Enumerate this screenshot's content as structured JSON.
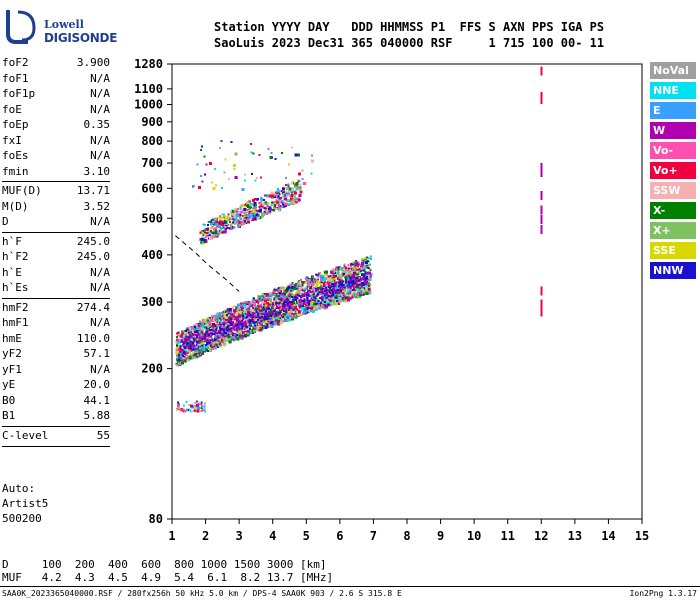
{
  "logo": {
    "line1": "Lowell",
    "line2": "DIGISONDE"
  },
  "header": {
    "line1": "Station YYYY DAY   DDD HHMMSS P1  FFS S AXN PPS IGA PS",
    "line2": "SaoLuis 2023 Dec31 365 040000 RSF     1 715 100 00- 11"
  },
  "params": [
    {
      "name": "foF2",
      "value": "3.900"
    },
    {
      "name": "foF1",
      "value": "N/A"
    },
    {
      "name": "foF1p",
      "value": "N/A"
    },
    {
      "name": "foE",
      "value": "N/A"
    },
    {
      "name": "foEp",
      "value": "0.35"
    },
    {
      "name": "fxI",
      "value": "N/A"
    },
    {
      "name": "foEs",
      "value": "N/A"
    },
    {
      "name": "fmin",
      "value": "3.10"
    },
    {
      "name": "MUF(D)",
      "value": "13.71"
    },
    {
      "name": "M(D)",
      "value": "3.52"
    },
    {
      "name": "D",
      "value": "N/A"
    },
    {
      "name": "h`F",
      "value": "245.0"
    },
    {
      "name": "h`F2",
      "value": "245.0"
    },
    {
      "name": "h`E",
      "value": "N/A"
    },
    {
      "name": "h`Es",
      "value": "N/A"
    },
    {
      "name": "hmF2",
      "value": "274.4"
    },
    {
      "name": "hmF1",
      "value": "N/A"
    },
    {
      "name": "hmE",
      "value": "110.0"
    },
    {
      "name": "yF2",
      "value": "57.1"
    },
    {
      "name": "yF1",
      "value": "N/A"
    },
    {
      "name": "yE",
      "value": "20.0"
    },
    {
      "name": "B0",
      "value": "44.1"
    },
    {
      "name": "B1",
      "value": "5.88"
    },
    {
      "name": "C-level",
      "value": "55"
    }
  ],
  "auto": {
    "line1": "Auto:",
    "line2": "Artist5",
    "line3": "500200"
  },
  "legend": [
    {
      "label": "NoVal",
      "color": "#a0a0a0"
    },
    {
      "label": "NNE",
      "color": "#00e0f0"
    },
    {
      "label": "E",
      "color": "#3aa0ff"
    },
    {
      "label": "W",
      "color": "#b000b0"
    },
    {
      "label": "Vo-",
      "color": "#ff4fb0"
    },
    {
      "label": "Vo+",
      "color": "#f00040"
    },
    {
      "label": "SSW",
      "color": "#f5b0b0"
    },
    {
      "label": "X-",
      "color": "#008000"
    },
    {
      "label": "X+",
      "color": "#7fc060"
    },
    {
      "label": "SSE",
      "color": "#d8d800"
    },
    {
      "label": "NNW",
      "color": "#1a10d0"
    }
  ],
  "bottom": {
    "d_row": "D     100  200  400  600  800 1000 1500 3000 [km]",
    "muf_row": "MUF   4.2  4.3  4.5  4.9  5.4  6.1  8.2 13.7 [MHz]"
  },
  "footer": {
    "left": "SAA0K_2023365040000.RSF / 280fx256h 50 kHz 5.0 km / DPS-4 SAA0K 903 / 2.6 S 315.8 E",
    "right": "Ion2Png 1.3.17"
  },
  "chart_data": {
    "type": "scatter",
    "xlim": [
      1,
      15
    ],
    "ylim": [
      80,
      1280
    ],
    "y_scale": "log",
    "x_ticks": [
      1,
      2,
      3,
      4,
      5,
      6,
      7,
      8,
      9,
      10,
      11,
      12,
      13,
      14,
      15
    ],
    "y_ticks": [
      80,
      200,
      300,
      400,
      500,
      600,
      700,
      800,
      900,
      1000,
      1100,
      1280
    ],
    "x_tick_labels": [
      "1",
      "2",
      "3",
      "4",
      "5",
      "6",
      "7",
      "8",
      "9",
      "10",
      "11",
      "12",
      "13",
      "14",
      "15"
    ],
    "y_tick_labels": [
      "80",
      "200",
      "300",
      "400",
      "500",
      "600",
      "700",
      "800",
      "900",
      "1000",
      "1100",
      "1280"
    ],
    "clusters": [
      {
        "name": "F1 trace",
        "x_range": [
          1.1,
          6.9
        ],
        "y_start": [
          205,
          250
        ],
        "y_end": [
          320,
          400
        ],
        "count": 3500
      },
      {
        "name": "F2 multiple",
        "x_range": [
          1.8,
          4.8
        ],
        "y_start": [
          430,
          480
        ],
        "y_end": [
          560,
          640
        ],
        "count": 700
      },
      {
        "name": "sparse upper",
        "x_range": [
          1.5,
          5.2
        ],
        "y_start": [
          600,
          820
        ],
        "y_end": [
          600,
          820
        ],
        "count": 60
      },
      {
        "name": "low E",
        "x_range": [
          1.1,
          2.0
        ],
        "y_start": [
          155,
          165
        ],
        "y_end": [
          155,
          165
        ],
        "count": 60
      }
    ],
    "freq_12_column": {
      "x": 12,
      "y_values": [
        290,
        305,
        330,
        480,
        510,
        540,
        590,
        680,
        700,
        1060,
        1080,
        1260
      ]
    },
    "dashed_line": {
      "x": [
        1.1,
        1.7,
        2.1,
        2.6,
        3.0
      ],
      "y": [
        450,
        405,
        375,
        345,
        320
      ]
    }
  }
}
